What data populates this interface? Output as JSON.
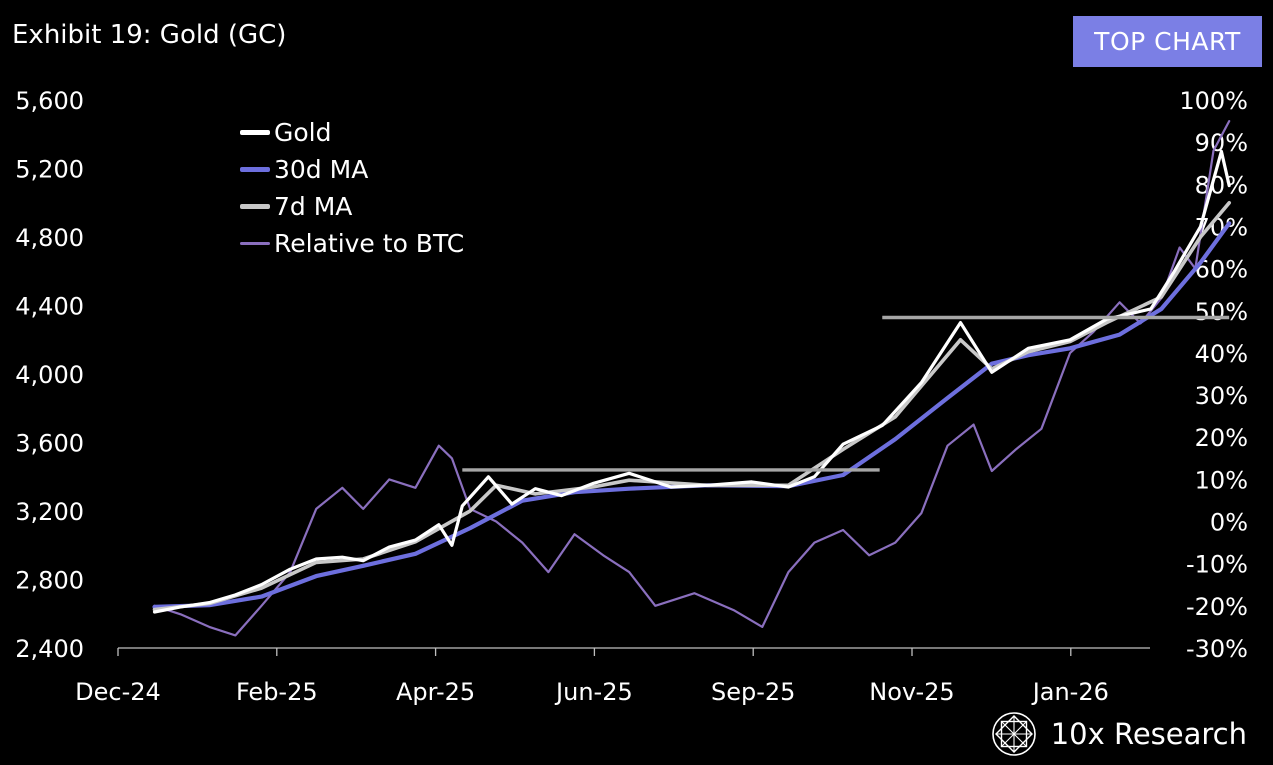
{
  "header": {
    "title": "Exhibit 19: Gold (GC)",
    "badge": "TOP CHART"
  },
  "brand": {
    "name": "10x Research",
    "icon": "10x-research-logo-icon"
  },
  "colors": {
    "background": "#000000",
    "gold": "#ffffff",
    "ma30": "#6d6fde",
    "ma7": "#c8c8c8",
    "relative_btc": "#8a6fbe",
    "resistance": "#a6a6a6",
    "badge": "#7b7fe5"
  },
  "chart_data": {
    "type": "line",
    "title": "Exhibit 19: Gold (GC)",
    "x_tick_labels": [
      "Dec-24",
      "Feb-25",
      "Apr-25",
      "Jun-25",
      "Sep-25",
      "Nov-25",
      "Jan-26"
    ],
    "x_range": [
      "2024-12-01",
      "2026-01-31"
    ],
    "y_left": {
      "range": [
        2400,
        5600
      ],
      "ticks": [
        2400,
        2800,
        3200,
        3600,
        4000,
        4400,
        4800,
        5200,
        5600
      ],
      "tick_labels": [
        "2,400",
        "2,800",
        "3,200",
        "3,600",
        "4,000",
        "4,400",
        "4,800",
        "5,200",
        "5,600"
      ]
    },
    "y_right": {
      "range": [
        -30,
        100
      ],
      "ticks": [
        -30,
        -20,
        -10,
        0,
        10,
        20,
        30,
        40,
        50,
        60,
        70,
        80,
        90,
        100
      ],
      "tick_labels": [
        "-30%",
        "-20%",
        "-10%",
        "0%",
        "10%",
        "20%",
        "30%",
        "40%",
        "50%",
        "60%",
        "70%",
        "80%",
        "90%",
        "100%"
      ]
    },
    "grid": false,
    "legend": {
      "position": "top-left"
    },
    "series": [
      {
        "name": "Gold",
        "axis": "left",
        "data": [
          [
            "2024-12-15",
            2610
          ],
          [
            "2024-12-25",
            2640
          ],
          [
            "2025-01-05",
            2665
          ],
          [
            "2025-01-15",
            2710
          ],
          [
            "2025-01-25",
            2770
          ],
          [
            "2025-02-05",
            2860
          ],
          [
            "2025-02-15",
            2920
          ],
          [
            "2025-02-25",
            2930
          ],
          [
            "2025-03-05",
            2910
          ],
          [
            "2025-03-15",
            2990
          ],
          [
            "2025-03-25",
            3030
          ],
          [
            "2025-04-03",
            3120
          ],
          [
            "2025-04-08",
            3000
          ],
          [
            "2025-04-12",
            3230
          ],
          [
            "2025-04-22",
            3400
          ],
          [
            "2025-05-01",
            3240
          ],
          [
            "2025-05-10",
            3330
          ],
          [
            "2025-05-20",
            3290
          ],
          [
            "2025-06-01",
            3360
          ],
          [
            "2025-06-15",
            3420
          ],
          [
            "2025-07-01",
            3340
          ],
          [
            "2025-07-15",
            3350
          ],
          [
            "2025-08-01",
            3370
          ],
          [
            "2025-08-15",
            3340
          ],
          [
            "2025-08-25",
            3400
          ],
          [
            "2025-09-05",
            3590
          ],
          [
            "2025-09-20",
            3700
          ],
          [
            "2025-10-05",
            3950
          ],
          [
            "2025-10-20",
            4300
          ],
          [
            "2025-11-01",
            4010
          ],
          [
            "2025-11-15",
            4150
          ],
          [
            "2025-12-01",
            4200
          ],
          [
            "2025-12-15",
            4320
          ],
          [
            "2026-01-01",
            4380
          ],
          [
            "2026-01-10",
            4600
          ],
          [
            "2026-01-20",
            4860
          ],
          [
            "2026-01-28",
            5300
          ],
          [
            "2026-01-31",
            5100
          ]
        ]
      },
      {
        "name": "30d MA",
        "axis": "left",
        "data": [
          [
            "2024-12-15",
            2640
          ],
          [
            "2025-01-05",
            2650
          ],
          [
            "2025-01-25",
            2700
          ],
          [
            "2025-02-15",
            2820
          ],
          [
            "2025-03-05",
            2880
          ],
          [
            "2025-03-25",
            2950
          ],
          [
            "2025-04-15",
            3100
          ],
          [
            "2025-05-05",
            3260
          ],
          [
            "2025-05-25",
            3310
          ],
          [
            "2025-06-15",
            3330
          ],
          [
            "2025-07-15",
            3350
          ],
          [
            "2025-08-15",
            3345
          ],
          [
            "2025-09-05",
            3410
          ],
          [
            "2025-09-25",
            3620
          ],
          [
            "2025-10-15",
            3860
          ],
          [
            "2025-11-01",
            4060
          ],
          [
            "2025-11-15",
            4110
          ],
          [
            "2025-12-01",
            4150
          ],
          [
            "2025-12-20",
            4230
          ],
          [
            "2026-01-05",
            4380
          ],
          [
            "2026-01-20",
            4650
          ],
          [
            "2026-01-31",
            4880
          ]
        ]
      },
      {
        "name": "7d MA",
        "axis": "left",
        "data": [
          [
            "2024-12-15",
            2625
          ],
          [
            "2025-01-05",
            2660
          ],
          [
            "2025-01-25",
            2750
          ],
          [
            "2025-02-15",
            2900
          ],
          [
            "2025-03-05",
            2920
          ],
          [
            "2025-03-25",
            3020
          ],
          [
            "2025-04-15",
            3200
          ],
          [
            "2025-04-25",
            3350
          ],
          [
            "2025-05-10",
            3300
          ],
          [
            "2025-06-01",
            3340
          ],
          [
            "2025-06-15",
            3380
          ],
          [
            "2025-07-15",
            3350
          ],
          [
            "2025-08-15",
            3350
          ],
          [
            "2025-09-05",
            3560
          ],
          [
            "2025-09-25",
            3750
          ],
          [
            "2025-10-20",
            4200
          ],
          [
            "2025-11-01",
            4030
          ],
          [
            "2025-11-15",
            4130
          ],
          [
            "2025-12-01",
            4190
          ],
          [
            "2025-12-15",
            4300
          ],
          [
            "2026-01-05",
            4450
          ],
          [
            "2026-01-20",
            4800
          ],
          [
            "2026-01-31",
            5000
          ]
        ]
      },
      {
        "name": "Relative to BTC",
        "axis": "right",
        "data": [
          [
            "2024-12-15",
            -20
          ],
          [
            "2024-12-25",
            -22
          ],
          [
            "2025-01-05",
            -25
          ],
          [
            "2025-01-15",
            -27
          ],
          [
            "2025-01-25",
            -20
          ],
          [
            "2025-02-05",
            -12
          ],
          [
            "2025-02-15",
            3
          ],
          [
            "2025-02-25",
            8
          ],
          [
            "2025-03-05",
            3
          ],
          [
            "2025-03-15",
            10
          ],
          [
            "2025-03-25",
            8
          ],
          [
            "2025-04-03",
            18
          ],
          [
            "2025-04-08",
            15
          ],
          [
            "2025-04-15",
            3
          ],
          [
            "2025-04-25",
            0
          ],
          [
            "2025-05-05",
            -5
          ],
          [
            "2025-05-15",
            -12
          ],
          [
            "2025-05-25",
            -3
          ],
          [
            "2025-06-05",
            -8
          ],
          [
            "2025-06-15",
            -12
          ],
          [
            "2025-06-25",
            -20
          ],
          [
            "2025-07-10",
            -17
          ],
          [
            "2025-07-25",
            -21
          ],
          [
            "2025-08-05",
            -25
          ],
          [
            "2025-08-15",
            -12
          ],
          [
            "2025-08-25",
            -5
          ],
          [
            "2025-09-05",
            -2
          ],
          [
            "2025-09-15",
            -8
          ],
          [
            "2025-09-25",
            -5
          ],
          [
            "2025-10-05",
            2
          ],
          [
            "2025-10-15",
            18
          ],
          [
            "2025-10-25",
            23
          ],
          [
            "2025-11-01",
            12
          ],
          [
            "2025-11-10",
            17
          ],
          [
            "2025-11-20",
            22
          ],
          [
            "2025-12-01",
            40
          ],
          [
            "2025-12-10",
            45
          ],
          [
            "2025-12-20",
            52
          ],
          [
            "2025-12-28",
            47
          ],
          [
            "2026-01-05",
            53
          ],
          [
            "2026-01-12",
            65
          ],
          [
            "2026-01-18",
            60
          ],
          [
            "2026-01-25",
            88
          ],
          [
            "2026-01-31",
            95
          ]
        ]
      }
    ],
    "annotations": [
      {
        "type": "hline",
        "axis": "left",
        "y": 3440,
        "x_start": "2025-04-12",
        "x_end": "2025-09-19"
      },
      {
        "type": "hline",
        "axis": "left",
        "y": 4330,
        "x_start": "2025-09-20",
        "x_end": "2026-01-31"
      }
    ]
  }
}
